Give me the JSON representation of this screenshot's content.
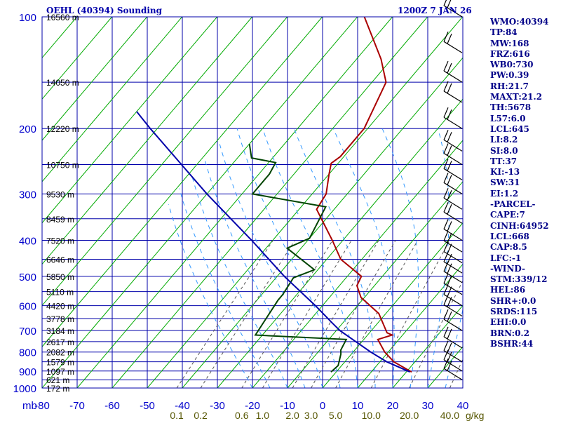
{
  "header": {
    "title": "OEHL (40394) Sounding",
    "datetime": "1200Z  7 JAN 26"
  },
  "stats": [
    "WMO:40394",
    "TP:84",
    "MW:168",
    "FRZ:616",
    "WB0:730",
    "PW:0.39",
    "RH:21.7",
    "MAXT:21.2",
    "TH:5678",
    "L57:6.0",
    "LCL:645",
    "LI:8.2",
    "SI:8.0",
    "TT:37",
    "KI:-13",
    "SW:31",
    "EI:1.2",
    "-PARCEL-",
    "CAPE:7",
    "CINH:64952",
    "LCL:668",
    "CAP:8.5",
    "LFC:-1",
    "-WIND-",
    "STM:339/12",
    "HEL:86",
    "SHR+:0.0",
    "SRDS:115",
    "EHI:0.0",
    "BRN:0.2",
    "BSHR:44"
  ],
  "colors": {
    "frame": "#0000aa",
    "isotherm": "#00aa00",
    "temperature": "#aa0000",
    "dewpoint": "#004400",
    "parcel": "#0000aa",
    "mixing": "#555555",
    "moist": "#3399ff",
    "pressure_label": "#0000cc",
    "mixing_label": "#555500"
  },
  "chart_data": {
    "type": "line",
    "title": "OEHL (40394) Sounding",
    "xlabel": "",
    "ylabel": "mb",
    "x_unit": "degC",
    "xlim": [
      -80,
      40
    ],
    "ylim": [
      1000,
      100
    ],
    "y_scale": "log",
    "grid": true,
    "x_ticks": [
      -80,
      -70,
      -60,
      -50,
      -40,
      -30,
      -20,
      -10,
      0,
      10,
      20,
      30,
      40
    ],
    "x_tick_labels": [
      "-80",
      "-70",
      "-60",
      "-50",
      "-40",
      "-30",
      "-20",
      "-10",
      "0",
      "10",
      "20",
      "30",
      "40"
    ],
    "axis_corner_label": "mb",
    "pressure_levels": [
      {
        "p": 100,
        "label": "100",
        "height": "16560 m"
      },
      {
        "p": 150,
        "label": "",
        "height": "14050 m"
      },
      {
        "p": 200,
        "label": "200",
        "height": "12220 m"
      },
      {
        "p": 250,
        "label": "",
        "height": "10750 m"
      },
      {
        "p": 300,
        "label": "300",
        "height": "9530 m"
      },
      {
        "p": 350,
        "label": "",
        "height": "8459 m"
      },
      {
        "p": 400,
        "label": "400",
        "height": "7520 m"
      },
      {
        "p": 450,
        "label": "",
        "height": "6646 m"
      },
      {
        "p": 500,
        "label": "500",
        "height": "5850 m"
      },
      {
        "p": 550,
        "label": "",
        "height": "5110 m"
      },
      {
        "p": 600,
        "label": "600",
        "height": "4420 m"
      },
      {
        "p": 650,
        "label": "",
        "height": "3778 m"
      },
      {
        "p": 700,
        "label": "700",
        "height": "3184 m"
      },
      {
        "p": 750,
        "label": "",
        "height": "2617 m"
      },
      {
        "p": 800,
        "label": "800",
        "height": "2082 m"
      },
      {
        "p": 850,
        "label": "",
        "height": "1579 m"
      },
      {
        "p": 900,
        "label": "900",
        "height": "1097 m"
      },
      {
        "p": 950,
        "label": "",
        "height": "621 m"
      },
      {
        "p": 1000,
        "label": "1000",
        "height": "172 m"
      }
    ],
    "mixing_ratio_labels": [
      "0.1",
      "0.2",
      "0.6",
      "1.0",
      "2.0",
      "3.0",
      "5.0",
      "10.0",
      "20.0",
      "40.0"
    ],
    "mixing_ratio_unit": "g/kg",
    "mixing_ratio_values": [
      0.1,
      0.2,
      0.6,
      1.0,
      2.0,
      3.0,
      5.0,
      10.0,
      20.0,
      40.0
    ],
    "series": [
      {
        "key": "temperature",
        "points": [
          {
            "p": 905,
            "t": 21.5
          },
          {
            "p": 850,
            "t": 14
          },
          {
            "p": 800,
            "t": 9
          },
          {
            "p": 740,
            "t": 4
          },
          {
            "p": 720,
            "t": 7
          },
          {
            "p": 710,
            "t": 5
          },
          {
            "p": 630,
            "t": -2
          },
          {
            "p": 570,
            "t": -11
          },
          {
            "p": 530,
            "t": -15
          },
          {
            "p": 500,
            "t": -16
          },
          {
            "p": 450,
            "t": -26
          },
          {
            "p": 400,
            "t": -33
          },
          {
            "p": 330,
            "t": -45
          },
          {
            "p": 300,
            "t": -46
          },
          {
            "p": 265,
            "t": -50
          },
          {
            "p": 248,
            "t": -52
          },
          {
            "p": 238,
            "t": -51
          },
          {
            "p": 200,
            "t": -51
          },
          {
            "p": 150,
            "t": -56
          },
          {
            "p": 130,
            "t": -63
          },
          {
            "p": 100,
            "t": -78
          }
        ]
      },
      {
        "key": "dewpoint",
        "points": [
          {
            "p": 905,
            "t": -1.5
          },
          {
            "p": 870,
            "t": -1
          },
          {
            "p": 810,
            "t": -3
          },
          {
            "p": 790,
            "t": -4
          },
          {
            "p": 740,
            "t": -5
          },
          {
            "p": 720,
            "t": -32
          },
          {
            "p": 580,
            "t": -34
          },
          {
            "p": 560,
            "t": -34
          },
          {
            "p": 505,
            "t": -35
          },
          {
            "p": 480,
            "t": -31
          },
          {
            "p": 420,
            "t": -44
          },
          {
            "p": 395,
            "t": -40
          },
          {
            "p": 325,
            "t": -43
          },
          {
            "p": 300,
            "t": -67
          },
          {
            "p": 265,
            "t": -67
          },
          {
            "p": 247,
            "t": -68
          },
          {
            "p": 240,
            "t": -76
          },
          {
            "p": 220,
            "t": -80
          }
        ]
      },
      {
        "key": "parcel",
        "points": [
          {
            "p": 905,
            "t": 21
          },
          {
            "p": 850,
            "t": 12
          },
          {
            "p": 800,
            "t": 5
          },
          {
            "p": 700,
            "t": -9
          },
          {
            "p": 668,
            "t": -13
          },
          {
            "p": 600,
            "t": -22
          },
          {
            "p": 500,
            "t": -38
          },
          {
            "p": 400,
            "t": -56
          },
          {
            "p": 300,
            "t": -80
          },
          {
            "p": 200,
            "t": -112
          },
          {
            "p": 180,
            "t": -120
          }
        ]
      }
    ],
    "wind_barbs": [
      {
        "p": 100
      },
      {
        "p": 125
      },
      {
        "p": 150
      },
      {
        "p": 170
      },
      {
        "p": 200
      },
      {
        "p": 230
      },
      {
        "p": 250
      },
      {
        "p": 275
      },
      {
        "p": 300
      },
      {
        "p": 330
      },
      {
        "p": 360
      },
      {
        "p": 400
      },
      {
        "p": 430
      },
      {
        "p": 460
      },
      {
        "p": 490
      },
      {
        "p": 520
      },
      {
        "p": 560
      },
      {
        "p": 600
      },
      {
        "p": 640
      },
      {
        "p": 700
      },
      {
        "p": 780
      },
      {
        "p": 850
      },
      {
        "p": 900
      },
      {
        "p": 950
      }
    ]
  }
}
